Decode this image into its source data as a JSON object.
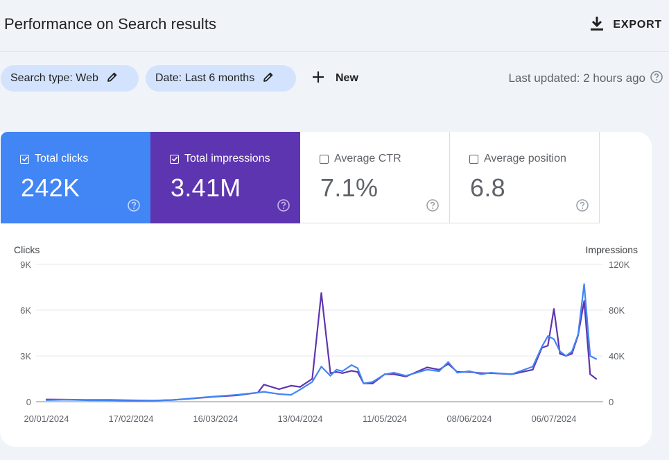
{
  "header": {
    "title": "Performance on Search results",
    "export_label": "EXPORT"
  },
  "filters": {
    "search_type": "Search type: Web",
    "date": "Date: Last 6 months",
    "new_label": "New",
    "last_updated": "Last updated: 2 hours ago"
  },
  "metrics": {
    "clicks": {
      "label": "Total clicks",
      "value": "242K",
      "checked": true
    },
    "impressions": {
      "label": "Total impressions",
      "value": "3.41M",
      "checked": true
    },
    "ctr": {
      "label": "Average CTR",
      "value": "7.1%",
      "checked": false
    },
    "position": {
      "label": "Average position",
      "value": "6.8",
      "checked": false
    }
  },
  "icons": {
    "export": "download-icon",
    "edit": "pencil-icon",
    "add": "plus-icon",
    "help": "help-circle-icon",
    "checkbox": "checkbox-icon"
  },
  "colors": {
    "clicks": "#4285f4",
    "impressions": "#5e35b1",
    "chip_bg": "#d3e3fd",
    "page_bg": "#f0f4f9"
  },
  "chart_data": {
    "type": "line",
    "left_axis_title": "Clicks",
    "right_axis_title": "Impressions",
    "y_left_ticks": [
      "0",
      "3K",
      "6K",
      "9K"
    ],
    "y_right_ticks": [
      "0",
      "40K",
      "80K",
      "120K"
    ],
    "ylim_left": [
      0,
      9000
    ],
    "ylim_right": [
      0,
      120000
    ],
    "x_tick_labels": [
      "20/01/2024",
      "17/02/2024",
      "16/03/2024",
      "13/04/2024",
      "11/05/2024",
      "08/06/2024",
      "06/07/2024"
    ],
    "x_start": "2024-01-20",
    "grid": true,
    "series": [
      {
        "name": "Clicks",
        "axis": "left",
        "color": "#4285f4",
        "x": [
          "2024-01-20",
          "2024-01-27",
          "2024-02-03",
          "2024-02-10",
          "2024-02-17",
          "2024-02-24",
          "2024-03-02",
          "2024-03-09",
          "2024-03-16",
          "2024-03-23",
          "2024-03-30",
          "2024-04-01",
          "2024-04-06",
          "2024-04-10",
          "2024-04-13",
          "2024-04-17",
          "2024-04-20",
          "2024-04-23",
          "2024-04-25",
          "2024-04-27",
          "2024-04-30",
          "2024-05-02",
          "2024-05-04",
          "2024-05-07",
          "2024-05-11",
          "2024-05-14",
          "2024-05-18",
          "2024-05-25",
          "2024-05-29",
          "2024-06-01",
          "2024-06-04",
          "2024-06-08",
          "2024-06-12",
          "2024-06-15",
          "2024-06-22",
          "2024-06-29",
          "2024-07-02",
          "2024-07-04",
          "2024-07-06",
          "2024-07-08",
          "2024-07-10",
          "2024-07-12",
          "2024-07-14",
          "2024-07-16",
          "2024-07-18",
          "2024-07-20"
        ],
        "values": [
          100,
          130,
          90,
          80,
          60,
          60,
          120,
          230,
          350,
          450,
          600,
          650,
          500,
          450,
          800,
          1300,
          2300,
          1700,
          2100,
          2000,
          2400,
          2200,
          1200,
          1300,
          1800,
          1900,
          1700,
          2100,
          2000,
          2600,
          1900,
          2000,
          1800,
          1900,
          1800,
          2300,
          3600,
          4300,
          4100,
          3300,
          3000,
          3300,
          4400,
          7700,
          3000,
          2800
        ]
      },
      {
        "name": "Impressions",
        "axis": "right",
        "color": "#5e35b1",
        "x": [
          "2024-01-20",
          "2024-01-27",
          "2024-02-03",
          "2024-02-10",
          "2024-02-17",
          "2024-02-24",
          "2024-03-02",
          "2024-03-09",
          "2024-03-16",
          "2024-03-23",
          "2024-03-30",
          "2024-04-01",
          "2024-04-06",
          "2024-04-10",
          "2024-04-13",
          "2024-04-17",
          "2024-04-20",
          "2024-04-23",
          "2024-04-25",
          "2024-04-27",
          "2024-04-30",
          "2024-05-02",
          "2024-05-04",
          "2024-05-07",
          "2024-05-11",
          "2024-05-14",
          "2024-05-18",
          "2024-05-25",
          "2024-05-29",
          "2024-06-01",
          "2024-06-04",
          "2024-06-08",
          "2024-06-12",
          "2024-06-15",
          "2024-06-22",
          "2024-06-29",
          "2024-07-02",
          "2024-07-04",
          "2024-07-06",
          "2024-07-08",
          "2024-07-10",
          "2024-07-12",
          "2024-07-14",
          "2024-07-16",
          "2024-07-18",
          "2024-07-20"
        ],
        "values": [
          2000,
          1800,
          1500,
          1500,
          1200,
          1000,
          1500,
          3000,
          4500,
          5500,
          8000,
          15000,
          11000,
          14000,
          13000,
          20000,
          95000,
          25000,
          26000,
          25000,
          27000,
          26000,
          16000,
          16000,
          24000,
          24000,
          22000,
          30000,
          28000,
          33000,
          26000,
          26000,
          25000,
          25000,
          24000,
          28000,
          47000,
          49000,
          81000,
          42000,
          40000,
          42000,
          58000,
          88000,
          24000,
          20000
        ]
      }
    ]
  }
}
